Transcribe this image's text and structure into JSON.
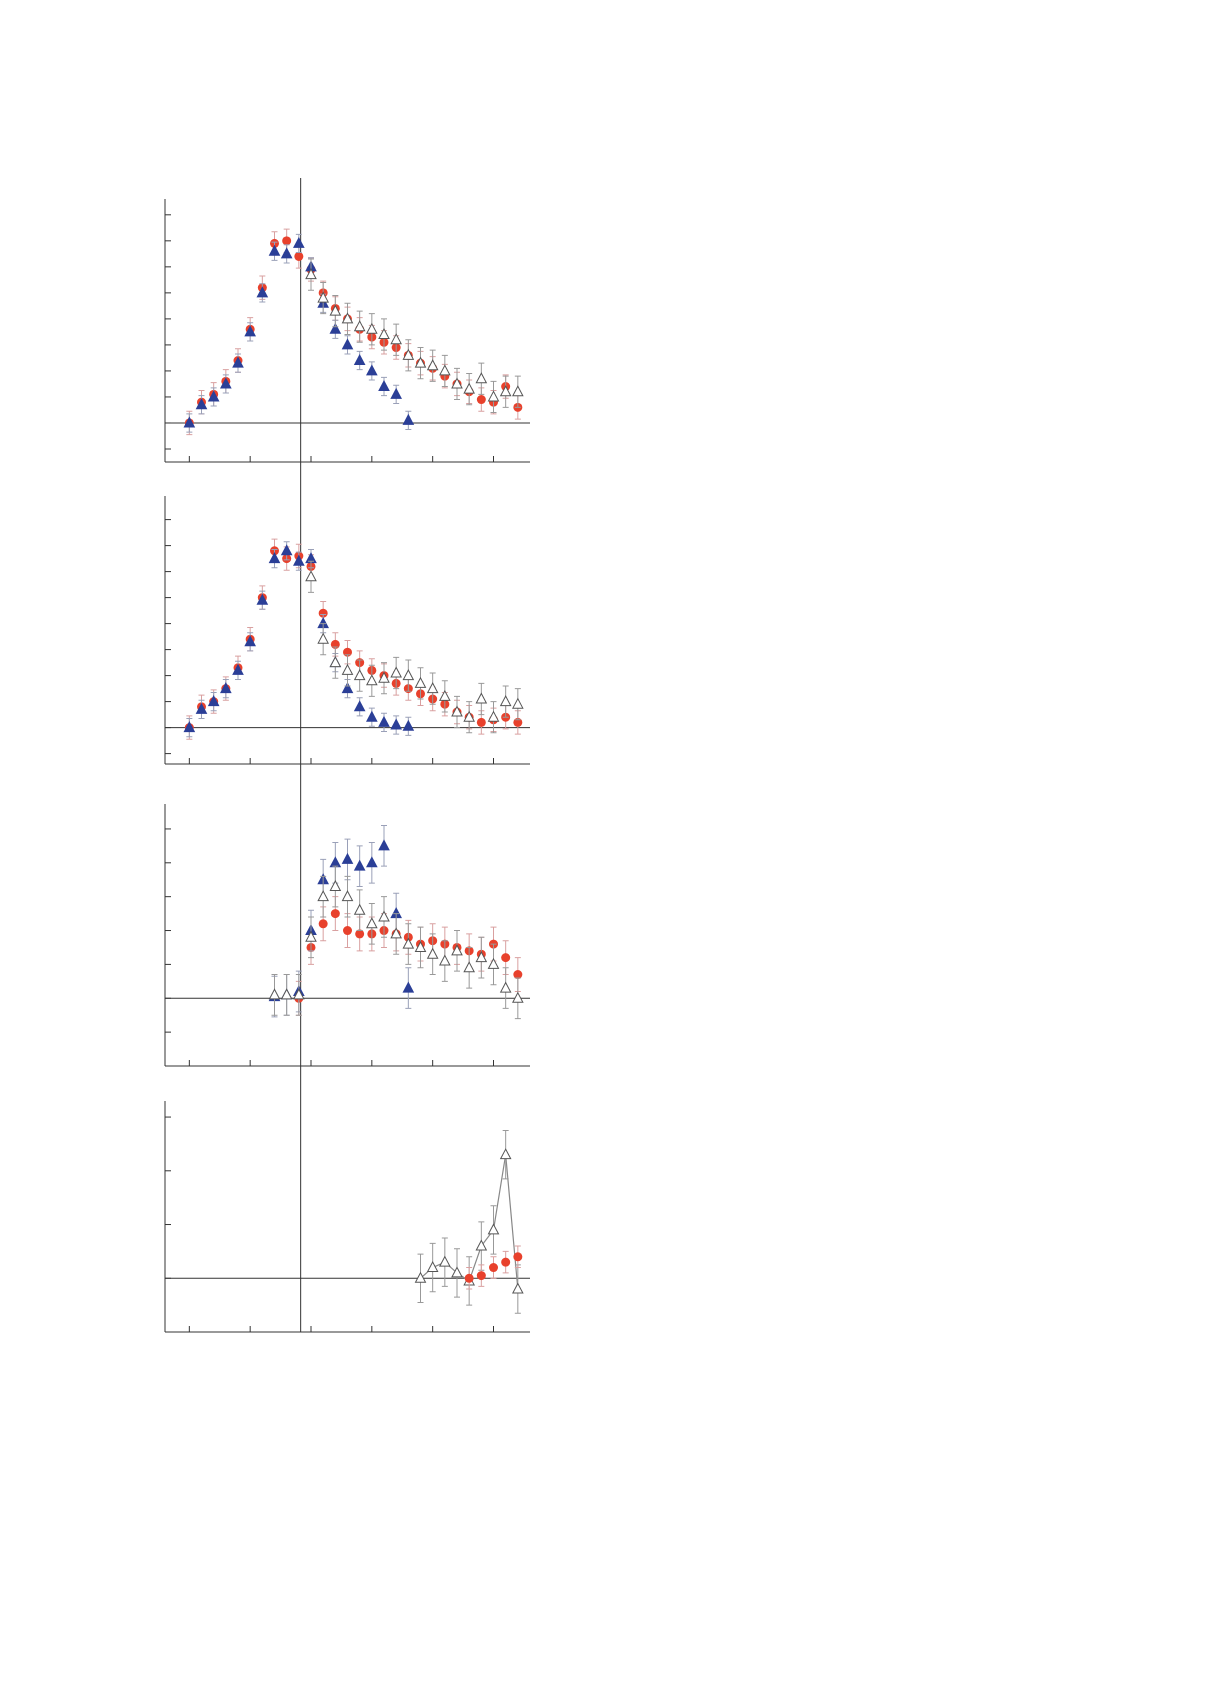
{
  "chart_data": [
    {
      "type": "scatter",
      "xlim": [
        -0.4,
        5.6
      ],
      "xticks": [
        0,
        1,
        2,
        3,
        4,
        5
      ],
      "ylim": [
        -1.5,
        8.3
      ],
      "yticks": [
        -1,
        0,
        1,
        2,
        3,
        4,
        5,
        6,
        7,
        8
      ],
      "hline": 0,
      "vline": 1.83,
      "series": [
        {
          "marker": "circle",
          "color": "#e8412c",
          "error_color": "#d9a0a0",
          "error": 0.45,
          "x": [
            0,
            0.2,
            0.4,
            0.6,
            0.8,
            1.0,
            1.2,
            1.4,
            1.6,
            1.8,
            2.0,
            2.2,
            2.4,
            2.6,
            2.8,
            3.0,
            3.2,
            3.4,
            3.6,
            3.8,
            4.0,
            4.2,
            4.4,
            4.6,
            4.8,
            5.0,
            5.2,
            5.4
          ],
          "values": [
            0,
            0.8,
            1.1,
            1.6,
            2.4,
            3.6,
            5.2,
            6.9,
            7.0,
            6.4,
            5.9,
            5.0,
            4.4,
            4.0,
            3.6,
            3.3,
            3.1,
            2.9,
            2.6,
            2.3,
            2.1,
            1.8,
            1.5,
            1.2,
            0.9,
            0.8,
            1.4,
            0.6
          ]
        },
        {
          "marker": "triangle",
          "color": "#2b3f97",
          "error_color": "#9aa0b8",
          "error": 0.35,
          "x": [
            0,
            0.2,
            0.4,
            0.6,
            0.8,
            1.0,
            1.2,
            1.4,
            1.6,
            1.8,
            2.0,
            2.2,
            2.4,
            2.6,
            2.8,
            3.0,
            3.2,
            3.4,
            3.6
          ],
          "values": [
            0,
            0.7,
            1.0,
            1.5,
            2.3,
            3.5,
            5.0,
            6.6,
            6.5,
            6.9,
            6.0,
            4.6,
            3.6,
            3.0,
            2.4,
            2.0,
            1.4,
            1.1,
            0.1
          ]
        },
        {
          "marker": "open-triangle",
          "color": "#555555",
          "error_color": "#999999",
          "error": 0.6,
          "x": [
            2.0,
            2.2,
            2.4,
            2.6,
            2.8,
            3.0,
            3.2,
            3.4,
            3.6,
            3.8,
            4.0,
            4.2,
            4.4,
            4.6,
            4.8,
            5.0,
            5.2,
            5.4
          ],
          "values": [
            5.7,
            4.8,
            4.3,
            4.0,
            3.7,
            3.6,
            3.4,
            3.2,
            2.6,
            2.3,
            2.2,
            2.0,
            1.5,
            1.3,
            1.7,
            1.0,
            1.2,
            1.2
          ]
        }
      ]
    },
    {
      "type": "scatter",
      "xlim": [
        -0.4,
        5.6
      ],
      "xticks": [
        0,
        1,
        2,
        3,
        4,
        5
      ],
      "ylim": [
        -1.4,
        8.6
      ],
      "yticks": [
        -1,
        0,
        1,
        2,
        3,
        4,
        5,
        6,
        7,
        8
      ],
      "hline": 0,
      "series": [
        {
          "marker": "circle",
          "color": "#e8412c",
          "error_color": "#d9a0a0",
          "error": 0.45,
          "x": [
            0,
            0.2,
            0.4,
            0.6,
            0.8,
            1.0,
            1.2,
            1.4,
            1.6,
            1.8,
            2.0,
            2.2,
            2.4,
            2.6,
            2.8,
            3.0,
            3.2,
            3.4,
            3.6,
            3.8,
            4.0,
            4.2,
            4.4,
            4.6,
            4.8,
            5.0,
            5.2,
            5.4
          ],
          "values": [
            0,
            0.8,
            1.0,
            1.5,
            2.3,
            3.4,
            5.0,
            6.8,
            6.5,
            6.6,
            6.2,
            4.4,
            3.2,
            2.9,
            2.5,
            2.2,
            2.0,
            1.7,
            1.5,
            1.3,
            1.1,
            0.9,
            0.6,
            0.4,
            0.2,
            0.3,
            0.4,
            0.2
          ]
        },
        {
          "marker": "triangle",
          "color": "#2b3f97",
          "error_color": "#9aa0b8",
          "error": 0.35,
          "x": [
            0,
            0.2,
            0.4,
            0.6,
            0.8,
            1.0,
            1.2,
            1.4,
            1.6,
            1.8,
            2.0,
            2.2,
            2.4,
            2.6,
            2.8,
            3.0,
            3.2,
            3.4,
            3.6
          ],
          "values": [
            0,
            0.7,
            1.0,
            1.5,
            2.2,
            3.3,
            4.9,
            6.5,
            6.8,
            6.4,
            6.5,
            4.0,
            2.5,
            1.5,
            0.8,
            0.4,
            0.2,
            0.1,
            0.05
          ]
        },
        {
          "marker": "open-triangle",
          "color": "#555555",
          "error_color": "#999999",
          "error": 0.6,
          "x": [
            2.0,
            2.2,
            2.4,
            2.6,
            2.8,
            3.0,
            3.2,
            3.4,
            3.6,
            3.8,
            4.0,
            4.2,
            4.4,
            4.6,
            4.8,
            5.0,
            5.2,
            5.4
          ],
          "values": [
            5.8,
            3.4,
            2.5,
            2.2,
            2.0,
            1.8,
            1.9,
            2.1,
            2.0,
            1.7,
            1.5,
            1.2,
            0.6,
            0.4,
            1.1,
            0.4,
            1.0,
            0.9
          ]
        }
      ]
    },
    {
      "type": "scatter",
      "xlim": [
        -0.4,
        5.6
      ],
      "xticks": [
        0,
        1,
        2,
        3,
        4,
        5
      ],
      "ylim": [
        -2,
        5.5
      ],
      "yticks": [
        -1,
        0,
        1,
        2,
        3,
        4,
        5
      ],
      "hline": 0,
      "series": [
        {
          "marker": "circle",
          "color": "#e8412c",
          "error_color": "#d9a0a0",
          "error": 0.5,
          "x": [
            1.8,
            2.0,
            2.2,
            2.4,
            2.6,
            2.8,
            3.0,
            3.2,
            3.4,
            3.6,
            3.8,
            4.0,
            4.2,
            4.4,
            4.6,
            4.8,
            5.0,
            5.2,
            5.4
          ],
          "values": [
            0,
            1.5,
            2.2,
            2.5,
            2.0,
            1.9,
            1.9,
            2.0,
            1.9,
            1.8,
            1.6,
            1.7,
            1.6,
            1.5,
            1.4,
            1.3,
            1.6,
            1.2,
            0.7
          ]
        },
        {
          "marker": "triangle",
          "color": "#2b3f97",
          "error_color": "#9aa0b8",
          "error": 0.6,
          "x": [
            1.4,
            1.6,
            1.8,
            2.0,
            2.2,
            2.4,
            2.6,
            2.8,
            3.0,
            3.2,
            3.4,
            3.6
          ],
          "values": [
            0.05,
            0.1,
            0.2,
            2.0,
            3.5,
            4.0,
            4.1,
            3.9,
            4.0,
            4.5,
            2.5,
            0.3
          ]
        },
        {
          "marker": "open-triangle",
          "color": "#555555",
          "error_color": "#999999",
          "error": 0.6,
          "x": [
            1.4,
            1.6,
            1.8,
            2.0,
            2.2,
            2.4,
            2.6,
            2.8,
            3.0,
            3.2,
            3.4,
            3.6,
            3.8,
            4.0,
            4.2,
            4.4,
            4.6,
            4.8,
            5.0,
            5.2,
            5.4
          ],
          "values": [
            0.1,
            0.1,
            0.1,
            1.8,
            3.0,
            3.3,
            3.0,
            2.6,
            2.2,
            2.4,
            1.9,
            1.6,
            1.5,
            1.3,
            1.1,
            1.4,
            0.9,
            1.2,
            1.0,
            0.3,
            0.0
          ]
        }
      ]
    },
    {
      "type": "scatter",
      "xlim": [
        -0.4,
        5.6
      ],
      "xticks": [
        0,
        1,
        2,
        3,
        4,
        5
      ],
      "ylim": [
        -1,
        3.15
      ],
      "yticks": [
        0,
        1,
        2,
        3
      ],
      "hline": 0,
      "series": [
        {
          "marker": "open-triangle",
          "color": "#555555",
          "error_color": "#999999",
          "error": 0.45,
          "line": true,
          "x": [
            3.8,
            4.0,
            4.2,
            4.4,
            4.6,
            4.8,
            5.0,
            5.2,
            5.4
          ],
          "values": [
            0,
            0.2,
            0.3,
            0.1,
            -0.05,
            0.6,
            0.9,
            2.3,
            -0.2
          ]
        },
        {
          "marker": "circle",
          "color": "#e8412c",
          "error_color": "#d9a0a0",
          "error": 0.2,
          "x": [
            4.6,
            4.8,
            5.0,
            5.2,
            5.4
          ],
          "values": [
            0.0,
            0.05,
            0.2,
            0.3,
            0.4
          ]
        }
      ]
    }
  ]
}
